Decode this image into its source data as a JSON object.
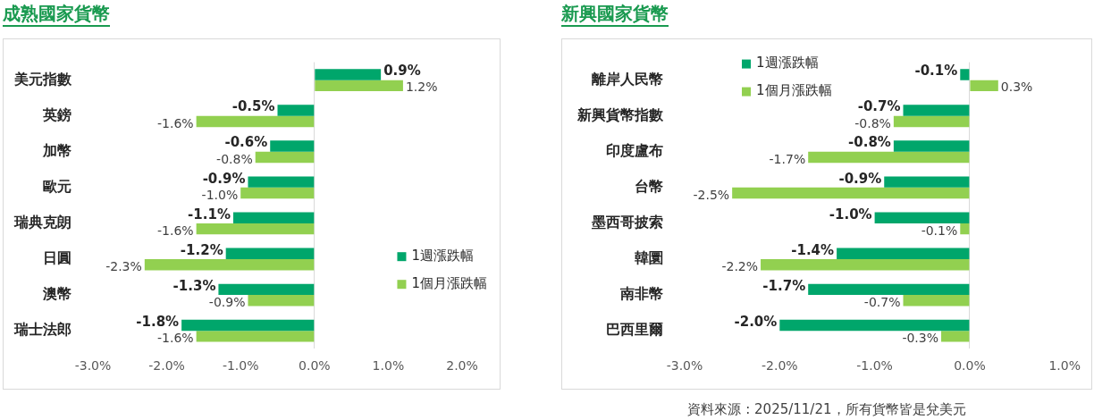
{
  "chart_data": [
    {
      "type": "bar",
      "title": "成熟國家貨幣",
      "orientation": "horizontal",
      "categories": [
        "美元指數",
        "英鎊",
        "加幣",
        "歐元",
        "瑞典克朗",
        "日圓",
        "澳幣",
        "瑞士法郎"
      ],
      "series": [
        {
          "name": "1週漲跌幅",
          "color": "#00a66b",
          "values": [
            0.9,
            -0.5,
            -0.6,
            -0.9,
            -1.1,
            -1.2,
            -1.3,
            -1.8
          ],
          "value_labels": [
            "0.9%",
            "-0.5%",
            "-0.6%",
            "-0.9%",
            "-1.1%",
            "-1.2%",
            "-1.3%",
            "-1.8%"
          ]
        },
        {
          "name": "1個月漲跌幅",
          "color": "#92d050",
          "values": [
            1.2,
            -1.6,
            -0.8,
            -1.0,
            -1.6,
            -2.3,
            -0.9,
            -1.6
          ],
          "value_labels": [
            "1.2%",
            "-1.6%",
            "-0.8%",
            "-1.0%",
            "-1.6%",
            "-2.3%",
            "-0.9%",
            "-1.6%"
          ]
        }
      ],
      "xlim": [
        -3,
        2
      ],
      "xticks": [
        {
          "value": -3,
          "label": "-3.0%"
        },
        {
          "value": -2,
          "label": "-2.0%"
        },
        {
          "value": -1,
          "label": "-1.0%"
        },
        {
          "value": 0,
          "label": "0.0%"
        },
        {
          "value": 1,
          "label": "1.0%"
        },
        {
          "value": 2,
          "label": "2.0%"
        }
      ],
      "legend": "bottom right"
    },
    {
      "type": "bar",
      "title": "新興國家貨幣",
      "orientation": "horizontal",
      "categories": [
        "離岸人民幣",
        "新興貨幣指數",
        "印度盧布",
        "台幣",
        "墨西哥披索",
        "韓圜",
        "南非幣",
        "巴西里爾"
      ],
      "series": [
        {
          "name": "1週漲跌幅",
          "color": "#00a66b",
          "values": [
            -0.1,
            -0.7,
            -0.8,
            -0.9,
            -1.0,
            -1.4,
            -1.7,
            -2.0
          ],
          "value_labels": [
            "-0.1%",
            "-0.7%",
            "-0.8%",
            "-0.9%",
            "-1.0%",
            "-1.4%",
            "-1.7%",
            "-2.0%"
          ]
        },
        {
          "name": "1個月漲跌幅",
          "color": "#92d050",
          "values": [
            0.3,
            -0.8,
            -1.7,
            -2.5,
            -0.1,
            -2.2,
            -0.7,
            -0.3
          ],
          "value_labels": [
            "0.3%",
            "-0.8%",
            "-1.7%",
            "-2.5%",
            "-0.1%",
            "-2.2%",
            "-0.7%",
            "-0.3%"
          ]
        }
      ],
      "xlim": [
        -3,
        1
      ],
      "xticks": [
        {
          "value": -3,
          "label": "-3.0%"
        },
        {
          "value": -2,
          "label": "-2.0%"
        },
        {
          "value": -1,
          "label": "-1.0%"
        },
        {
          "value": 0,
          "label": "0.0%"
        },
        {
          "value": 1,
          "label": "1.0%"
        }
      ],
      "legend": "top left",
      "annotations": [
        "資料來源 : 2025/11/21，所有貨幣皆是兌美元"
      ]
    }
  ]
}
